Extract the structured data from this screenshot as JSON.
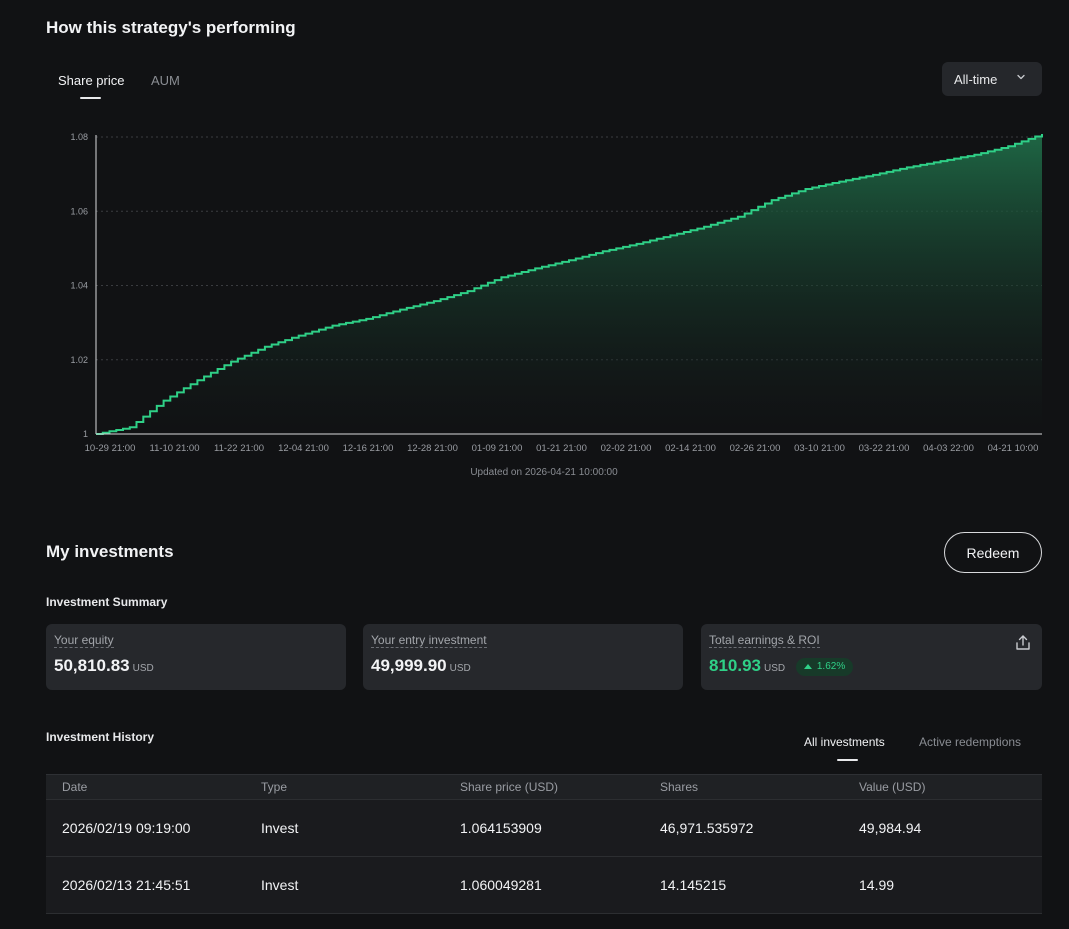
{
  "header": {
    "title": "How this strategy's performing"
  },
  "chart_tabs": {
    "share_price": "Share price",
    "aum": "AUM",
    "active": "Share price"
  },
  "range": {
    "label": "All-time",
    "icon": "chevron-down-icon"
  },
  "chart_data": {
    "type": "area",
    "title": "",
    "xlabel": "",
    "ylabel": "",
    "ylim": [
      1,
      1.08
    ],
    "yticks": [
      1,
      1.02,
      1.04,
      1.06,
      1.08
    ],
    "ytick_labels": [
      "1",
      "1.02",
      "1.04",
      "1.06",
      "1.08"
    ],
    "grid": "horizontal dotted",
    "xtick_labels": [
      "10-29 21:00",
      "11-10 21:00",
      "11-22 21:00",
      "12-04 21:00",
      "12-16 21:00",
      "12-28 21:00",
      "01-09 21:00",
      "01-21 21:00",
      "02-02 21:00",
      "02-14 21:00",
      "02-26 21:00",
      "03-10 21:00",
      "03-22 21:00",
      "04-03 22:00",
      "04-21 10:00"
    ],
    "x": [
      0,
      0.5,
      1,
      1.5,
      2,
      2.5,
      3,
      3.5,
      4,
      4.5,
      5,
      5.5,
      6,
      6.5,
      7,
      7.5,
      8,
      8.5,
      9,
      9.5,
      10,
      10.5,
      11,
      11.5,
      12,
      12.5,
      13,
      13.5,
      14
    ],
    "values": [
      1.0,
      1.0018,
      1.009,
      1.0145,
      1.0195,
      1.0235,
      1.0265,
      1.0292,
      1.031,
      1.0335,
      1.0358,
      1.0385,
      1.0422,
      1.0446,
      1.0468,
      1.0492,
      1.0512,
      1.0535,
      1.0558,
      1.0585,
      1.063,
      1.066,
      1.068,
      1.0698,
      1.0718,
      1.0735,
      1.0752,
      1.0775,
      1.0808
    ],
    "line_color": "#2fd087",
    "fill_color": "#1f6b47"
  },
  "updated_text": "Updated on 2026-04-21 10:00:00",
  "investments": {
    "title": "My investments",
    "redeem_label": "Redeem",
    "summary_title": "Investment Summary",
    "cards": [
      {
        "label": "Your equity",
        "value": "50,810.83",
        "unit": "USD"
      },
      {
        "label": "Your entry investment",
        "value": "49,999.90",
        "unit": "USD"
      },
      {
        "label": "Total earnings & ROI",
        "value": "810.93",
        "unit": "USD",
        "roi": "1.62%",
        "icon": "share-icon"
      }
    ]
  },
  "history": {
    "title": "Investment History",
    "tabs": [
      "All investments",
      "Active redemptions"
    ],
    "active_tab": "All investments",
    "columns": [
      "Date",
      "Type",
      "Share price (USD)",
      "Shares",
      "Value (USD)"
    ],
    "rows": [
      [
        "2026/02/19 09:19:00",
        "Invest",
        "1.064153909",
        "46,971.535972",
        "49,984.94"
      ],
      [
        "2026/02/13 21:45:51",
        "Invest",
        "1.060049281",
        "14.145215",
        "14.99"
      ]
    ]
  },
  "colors": {
    "accent": "#2fd087",
    "background": "#111214",
    "card": "#26282c"
  }
}
